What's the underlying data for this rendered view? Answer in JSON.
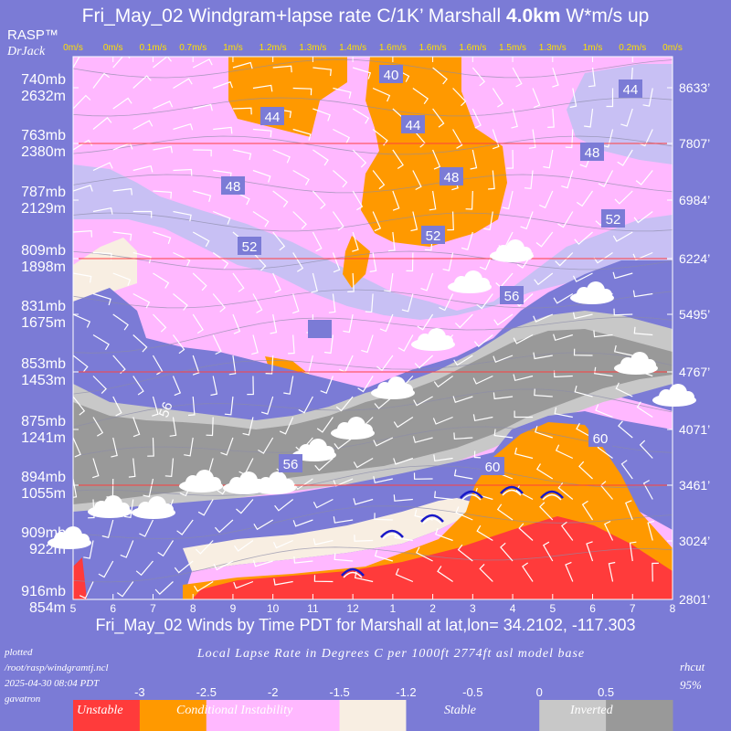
{
  "header": {
    "title_pre": "Fri_May_02 Windgram+lapse rate C/1K’  Marshall ",
    "title_bold": "4.0km",
    "title_post": "  W*m/s up",
    "brand": "RASP™",
    "brand_sub": "DrJack"
  },
  "footer": {
    "subtitle": "Fri_May_02 Winds by Time PDT for Marshall at lat,lon= 34.2102, -117.303",
    "lapse_label": "Local Lapse Rate in Degrees C per 1000ft   2774ft asl model base",
    "plotted_lines": [
      "plotted",
      "/root/rasp/windgramtj.ncl",
      "2025-04-30 08:04 PDT",
      "gavatron"
    ],
    "rhcut_lines": [
      "rhcut",
      "95%"
    ]
  },
  "legend": {
    "ticks": [
      "-3",
      "-2.5",
      "-2",
      "-1.5",
      "-1.2",
      "-0.5",
      "0",
      "0.5"
    ],
    "categories": [
      {
        "name": "Unstable",
        "color": "#ff3b3b"
      },
      {
        "name": "Conditional Instability",
        "color": "#ff9900"
      },
      {
        "name": "Stable",
        "color": "#7b7bd6"
      },
      {
        "name": "Inverted",
        "color": "#c8c8c8"
      }
    ],
    "band_colors": [
      "#ff3b3b",
      "#ff9900",
      "#ffb8ff",
      "#ffb8ff",
      "#f8eee2",
      "#7b7bd6",
      "#7b7bd6",
      "#c8c8c8",
      "#999999"
    ]
  },
  "chart_data": {
    "type": "heatmap",
    "x_label": "Winds by Time PDT",
    "x_ticks": [
      "5",
      "6",
      "7",
      "8",
      "9",
      "10",
      "11",
      "12",
      "1",
      "2",
      "3",
      "4",
      "5",
      "6",
      "7",
      "8"
    ],
    "w_star_top": [
      "0m/s",
      "0m/s",
      "0.1m/s",
      "0.7m/s",
      "1m/s",
      "1.2m/s",
      "1.3m/s",
      "1.4m/s",
      "1.6m/s",
      "1.6m/s",
      "1.6m/s",
      "1.5m/s",
      "1.3m/s",
      "1m/s",
      "0.2m/s",
      "0m/s"
    ],
    "left_levels": [
      {
        "mb": "740mb",
        "m": "2632m"
      },
      {
        "mb": "763mb",
        "m": "2380m"
      },
      {
        "mb": "787mb",
        "m": "2129m"
      },
      {
        "mb": "809mb",
        "m": "1898m"
      },
      {
        "mb": "831mb",
        "m": "1675m"
      },
      {
        "mb": "853mb",
        "m": "1453m"
      },
      {
        "mb": "875mb",
        "m": "1241m"
      },
      {
        "mb": "894mb",
        "m": "1055m"
      },
      {
        "mb": "909mb",
        "m": "922m"
      },
      {
        "mb": "916mb",
        "m": "854m"
      }
    ],
    "right_levels_ft": [
      "8633’",
      "7807’",
      "6984’",
      "6224’",
      "5495’",
      "4767’",
      "4071’",
      "3461’",
      "3024’",
      "2801’"
    ],
    "rh_contour_labels": [
      "40",
      "44",
      "44",
      "44",
      "48",
      "48",
      "48",
      "52",
      "52",
      "52",
      "56",
      "56",
      "56",
      "56",
      "60",
      "60"
    ],
    "thermal_tops_hours": [
      "12",
      "1",
      "2",
      "3",
      "4",
      "5"
    ]
  }
}
